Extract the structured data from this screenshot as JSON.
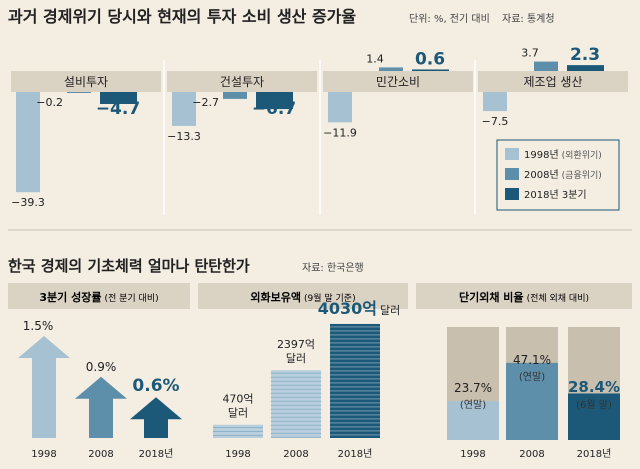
{
  "colors": {
    "background": "#f3ede2",
    "panel_header": "#dad2c3",
    "y1998": "#a6c2d2",
    "y2008": "#5d8faa",
    "y2018": "#1c5877",
    "highlight_text": "#1c5877",
    "stack_light": "#b9cfdd",
    "pct_track": "#c9bfae"
  },
  "chart_data": [
    {
      "type": "bar",
      "title": "과거 경제위기 당시와 현재의 투자 소비 생산 증가율",
      "subtitle": "단위: %, 전기 대비",
      "source": "자료: 통계청",
      "categories": [
        "설비투자",
        "건설투자",
        "민간소비",
        "제조업 생산"
      ],
      "series": [
        {
          "name": "1998년 (외환위기)",
          "values": [
            -39.3,
            -13.3,
            -11.9,
            -7.5
          ],
          "labels": [
            "−39.3",
            "−13.3",
            "−11.9",
            "−7.5"
          ]
        },
        {
          "name": "2008년 (금융위기)",
          "values": [
            -0.2,
            -2.7,
            1.4,
            3.7
          ],
          "labels": [
            "−0.2",
            "−2.7",
            "1.4",
            "3.7"
          ]
        },
        {
          "name": "2018년 3분기",
          "values": [
            -4.7,
            -6.7,
            0.6,
            2.3
          ],
          "labels": [
            "−4.7",
            "−6.7",
            "0.6",
            "2.3"
          ]
        }
      ],
      "legend": [
        {
          "year": "1998년",
          "note": "(외환위기)"
        },
        {
          "year": "2008년",
          "note": "(금융위기)"
        },
        {
          "year": "2018년 3분기",
          "note": ""
        }
      ],
      "legend_position": "bottom-right"
    },
    {
      "type": "bar",
      "section_title": "한국 경제의 기초체력 얼마나 탄탄한가",
      "source": "자료: 한국은행",
      "title": "3분기 성장률",
      "subtitle": "(전 분기 대비)",
      "categories": [
        "1998",
        "2008",
        "2018년"
      ],
      "values": [
        1.5,
        0.9,
        0.6
      ],
      "labels": [
        "1.5%",
        "0.9%",
        "0.6%"
      ]
    },
    {
      "type": "bar",
      "title": "외화보유액",
      "subtitle": "(9월 말 기준)",
      "categories": [
        "1998",
        "2008",
        "2018년"
      ],
      "values": [
        470,
        2397,
        4030
      ],
      "labels": [
        {
          "amount": "470억",
          "unit": "달러"
        },
        {
          "amount": "2397억",
          "unit": "달러"
        },
        {
          "amount": "4030억",
          "unit": "달러"
        }
      ]
    },
    {
      "type": "bar",
      "title": "단기외채 비율",
      "subtitle": "(전체 외채 대비)",
      "categories": [
        "1998",
        "2008",
        "2018년"
      ],
      "values": [
        23.7,
        47.1,
        28.4
      ],
      "labels": [
        {
          "value": "23.7%",
          "note": "(연말)"
        },
        {
          "value": "47.1%",
          "note": "(연말)"
        },
        {
          "value": "28.4%",
          "note": "(6월 말)"
        }
      ]
    }
  ]
}
